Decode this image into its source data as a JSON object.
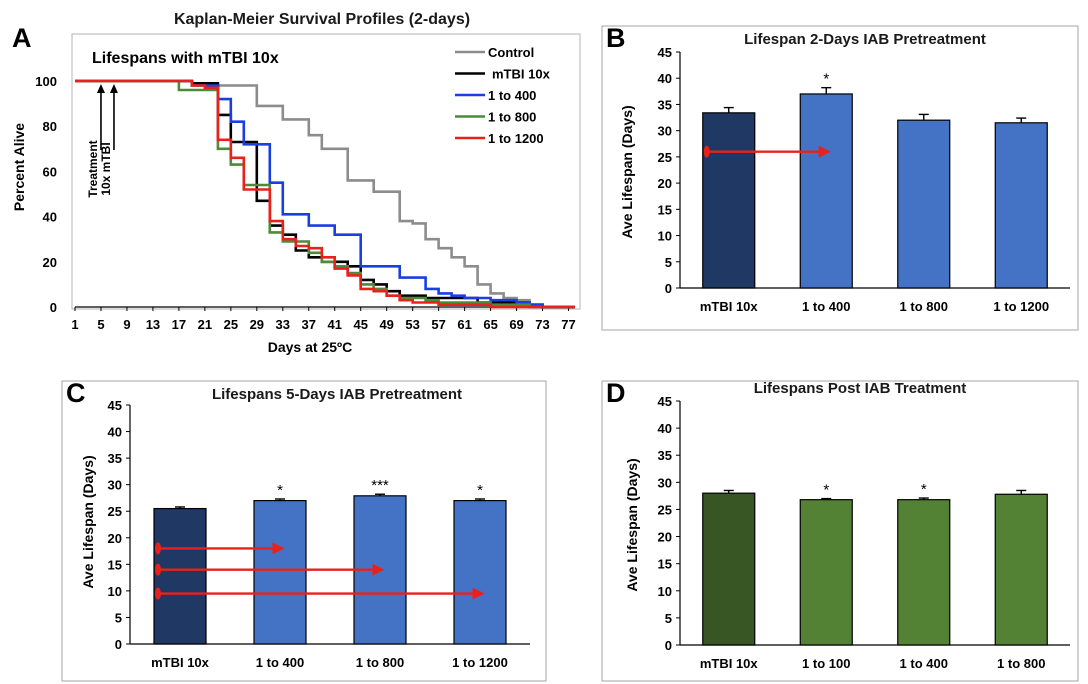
{
  "chart_data": [
    {
      "id": "A",
      "panel_label": "A",
      "type": "line",
      "title": "Kaplan-Meier Survival Profiles (2-days)",
      "subtitle": "Lifespans with mTBI 10x",
      "xlabel": "Days at 25ºC",
      "ylabel": "Percent Alive",
      "xlim": [
        1,
        78
      ],
      "ylim": [
        0,
        100
      ],
      "xticks": [
        1,
        5,
        9,
        13,
        17,
        21,
        25,
        29,
        33,
        37,
        41,
        45,
        49,
        53,
        57,
        61,
        65,
        69,
        73,
        77
      ],
      "yticks": [
        0,
        20,
        40,
        60,
        80,
        100
      ],
      "annotations": [
        {
          "label": "Treatment",
          "x": 5
        },
        {
          "label": "10x mTBI",
          "x": 7
        }
      ],
      "series": [
        {
          "name": "Control",
          "color": "#8c8c8c",
          "points": [
            [
              1,
              100
            ],
            [
              15,
              100
            ],
            [
              19,
              98
            ],
            [
              27,
              98
            ],
            [
              29,
              89
            ],
            [
              31,
              89
            ],
            [
              33,
              83
            ],
            [
              35,
              83
            ],
            [
              37,
              76
            ],
            [
              39,
              70
            ],
            [
              41,
              70
            ],
            [
              43,
              56
            ],
            [
              45,
              56
            ],
            [
              47,
              51
            ],
            [
              49,
              51
            ],
            [
              51,
              38
            ],
            [
              53,
              37
            ],
            [
              55,
              30
            ],
            [
              57,
              26
            ],
            [
              59,
              22
            ],
            [
              61,
              18
            ],
            [
              63,
              10
            ],
            [
              65,
              6
            ],
            [
              67,
              4
            ],
            [
              69,
              3
            ],
            [
              71,
              1
            ],
            [
              73,
              0
            ],
            [
              78,
              0
            ]
          ]
        },
        {
          "name": "mTBI 10x",
          "color": "#000000",
          "points": [
            [
              1,
              100
            ],
            [
              15,
              100
            ],
            [
              19,
              99
            ],
            [
              21,
              99
            ],
            [
              23,
              85
            ],
            [
              25,
              73
            ],
            [
              27,
              73
            ],
            [
              29,
              47
            ],
            [
              31,
              36
            ],
            [
              33,
              32
            ],
            [
              35,
              25
            ],
            [
              37,
              22
            ],
            [
              39,
              20
            ],
            [
              41,
              20
            ],
            [
              43,
              18
            ],
            [
              45,
              12
            ],
            [
              47,
              10
            ],
            [
              49,
              7
            ],
            [
              51,
              5
            ],
            [
              53,
              5
            ],
            [
              55,
              4
            ],
            [
              57,
              4
            ],
            [
              59,
              4
            ],
            [
              63,
              2
            ],
            [
              67,
              2
            ],
            [
              71,
              1
            ],
            [
              73,
              0
            ],
            [
              78,
              0
            ]
          ]
        },
        {
          "name": "1 to 400",
          "color": "#1a3fe0",
          "points": [
            [
              1,
              100
            ],
            [
              15,
              100
            ],
            [
              19,
              98
            ],
            [
              21,
              98
            ],
            [
              23,
              92
            ],
            [
              25,
              82
            ],
            [
              27,
              72
            ],
            [
              29,
              72
            ],
            [
              31,
              55
            ],
            [
              33,
              41
            ],
            [
              35,
              41
            ],
            [
              37,
              36
            ],
            [
              39,
              36
            ],
            [
              41,
              32
            ],
            [
              43,
              32
            ],
            [
              45,
              18
            ],
            [
              47,
              18
            ],
            [
              49,
              18
            ],
            [
              51,
              13
            ],
            [
              53,
              13
            ],
            [
              55,
              8
            ],
            [
              57,
              6
            ],
            [
              59,
              5
            ],
            [
              61,
              4
            ],
            [
              65,
              3
            ],
            [
              69,
              2
            ],
            [
              71,
              1
            ],
            [
              73,
              0
            ],
            [
              78,
              0
            ]
          ]
        },
        {
          "name": "1 to 800",
          "color": "#4e8a3a",
          "points": [
            [
              1,
              100
            ],
            [
              15,
              100
            ],
            [
              17,
              96
            ],
            [
              19,
              96
            ],
            [
              21,
              96
            ],
            [
              23,
              70
            ],
            [
              25,
              63
            ],
            [
              27,
              54
            ],
            [
              29,
              54
            ],
            [
              31,
              33
            ],
            [
              33,
              29
            ],
            [
              35,
              29
            ],
            [
              37,
              24
            ],
            [
              39,
              20
            ],
            [
              41,
              18
            ],
            [
              43,
              15
            ],
            [
              45,
              10
            ],
            [
              47,
              8
            ],
            [
              49,
              5
            ],
            [
              51,
              4
            ],
            [
              53,
              4
            ],
            [
              55,
              3
            ],
            [
              57,
              2
            ],
            [
              61,
              2
            ],
            [
              65,
              1
            ],
            [
              69,
              1
            ],
            [
              71,
              0
            ],
            [
              78,
              0
            ]
          ]
        },
        {
          "name": "1 to 1200",
          "color": "#e8221a",
          "points": [
            [
              1,
              100
            ],
            [
              15,
              100
            ],
            [
              19,
              98
            ],
            [
              21,
              97
            ],
            [
              23,
              74
            ],
            [
              25,
              66
            ],
            [
              27,
              52
            ],
            [
              29,
              52
            ],
            [
              31,
              38
            ],
            [
              33,
              30
            ],
            [
              35,
              27
            ],
            [
              37,
              26
            ],
            [
              39,
              22
            ],
            [
              41,
              17
            ],
            [
              43,
              14
            ],
            [
              45,
              8
            ],
            [
              47,
              7
            ],
            [
              49,
              5
            ],
            [
              51,
              3
            ],
            [
              53,
              2
            ],
            [
              55,
              2
            ],
            [
              57,
              1
            ],
            [
              61,
              1
            ],
            [
              65,
              0
            ],
            [
              78,
              0
            ]
          ]
        }
      ]
    },
    {
      "id": "B",
      "panel_label": "B",
      "type": "bar",
      "title": "Lifespan 2-Days IAB Pretreatment",
      "ylabel": "Ave Lifespan (Days)",
      "ylim": [
        0,
        45
      ],
      "yticks": [
        0,
        5,
        10,
        15,
        20,
        25,
        30,
        35,
        40,
        45
      ],
      "categories": [
        "mTBI 10x",
        "1 to 400",
        "1 to 800",
        "1 to 1200"
      ],
      "values": [
        33.4,
        37.0,
        32.0,
        31.5
      ],
      "errors": [
        1.0,
        1.2,
        1.1,
        0.9
      ],
      "colors": [
        "#1f3864",
        "#4472c4",
        "#4472c4",
        "#4472c4"
      ],
      "significance": [
        "",
        "*",
        "",
        ""
      ],
      "arrows": [
        {
          "y": 26,
          "from": 0,
          "to": 1
        }
      ]
    },
    {
      "id": "C",
      "panel_label": "C",
      "type": "bar",
      "title": "Lifespans 5-Days IAB Pretreatment",
      "ylabel": "Ave Lifespan (Days)",
      "ylim": [
        0,
        45
      ],
      "yticks": [
        0,
        5,
        10,
        15,
        20,
        25,
        30,
        35,
        40,
        45
      ],
      "categories": [
        "mTBI 10x",
        "1 to 400",
        "1 to 800",
        "1 to 1200"
      ],
      "values": [
        25.5,
        27.0,
        27.9,
        27.0
      ],
      "errors": [
        0.3,
        0.3,
        0.3,
        0.3
      ],
      "colors": [
        "#1f3864",
        "#4472c4",
        "#4472c4",
        "#4472c4"
      ],
      "significance": [
        "",
        "*",
        "***",
        "*"
      ],
      "arrows": [
        {
          "y": 18,
          "from": 0,
          "to": 1
        },
        {
          "y": 14,
          "from": 0,
          "to": 2
        },
        {
          "y": 9.5,
          "from": 0,
          "to": 3
        }
      ]
    },
    {
      "id": "D",
      "panel_label": "D",
      "type": "bar",
      "title": "Lifespans Post IAB Treatment",
      "ylabel": "Ave Lifespan (Days)",
      "ylim": [
        0,
        45
      ],
      "yticks": [
        0,
        5,
        10,
        15,
        20,
        25,
        30,
        35,
        40,
        45
      ],
      "categories": [
        "mTBI 10x",
        "1 to 100",
        "1 to 400",
        "1 to 800"
      ],
      "values": [
        28.0,
        26.8,
        26.8,
        27.8
      ],
      "errors": [
        0.5,
        0.2,
        0.3,
        0.7
      ],
      "colors": [
        "#375623",
        "#548235",
        "#548235",
        "#548235"
      ],
      "significance": [
        "",
        "*",
        "*",
        ""
      ],
      "arrows": []
    }
  ]
}
